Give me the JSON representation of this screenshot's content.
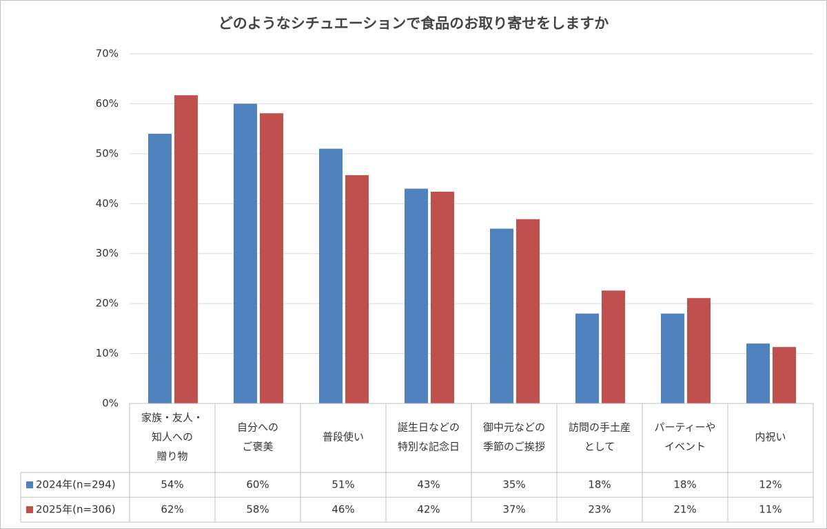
{
  "chart_data": {
    "type": "bar",
    "title": "どのようなシチュエーションで食品のお取り寄せをしますか",
    "categories": [
      [
        "家族・友人・",
        "知人への",
        "贈り物"
      ],
      [
        "自分への",
        "ご褒美"
      ],
      [
        "普段使い"
      ],
      [
        "誕生日などの",
        "特別な記念日"
      ],
      [
        "御中元などの",
        "季節のご挨拶"
      ],
      [
        "訪問の手土産",
        "として"
      ],
      [
        "パーティーや",
        "イベント"
      ],
      [
        "内祝い"
      ]
    ],
    "series": [
      {
        "name": "2024年(n=294)",
        "color": "#4f81bd",
        "values": [
          54,
          60,
          51,
          43,
          35,
          18,
          18,
          12
        ],
        "value_labels": [
          "54%",
          "60%",
          "51%",
          "43%",
          "35%",
          "18%",
          "18%",
          "12%"
        ]
      },
      {
        "name": "2025年(n=306)",
        "color": "#c0504d",
        "values": [
          61.7,
          58.1,
          45.7,
          42.4,
          36.9,
          22.6,
          21.1,
          11.3
        ],
        "value_labels": [
          "62%",
          "58%",
          "46%",
          "42%",
          "37%",
          "23%",
          "21%",
          "11%"
        ]
      }
    ],
    "ylim": [
      0,
      70
    ],
    "yticks": [
      {
        "value": 0,
        "label": "0%"
      },
      {
        "value": 10,
        "label": "10%"
      },
      {
        "value": 20,
        "label": "20%"
      },
      {
        "value": 30,
        "label": "30%"
      },
      {
        "value": 40,
        "label": "40%"
      },
      {
        "value": 50,
        "label": "50%"
      },
      {
        "value": 60,
        "label": "60%"
      },
      {
        "value": 70,
        "label": "70%"
      }
    ],
    "grid": true
  }
}
